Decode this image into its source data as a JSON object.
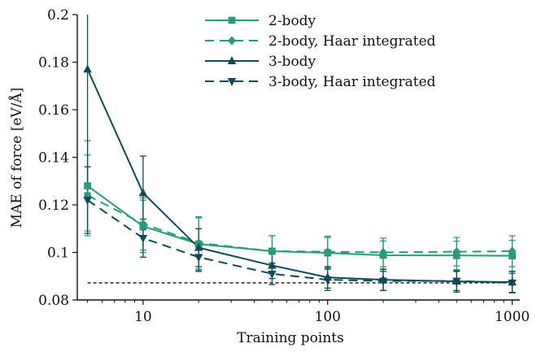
{
  "chart_data": {
    "type": "line",
    "title": "",
    "xlabel": "Training points",
    "ylabel": "MAE of force [eV/Å]",
    "x_scale": "log",
    "xlim": [
      4.4,
      1100
    ],
    "ylim": [
      0.08,
      0.2
    ],
    "x_ticks": [
      10,
      100,
      1000
    ],
    "x_tick_labels": [
      "10",
      "100",
      "1000"
    ],
    "y_ticks": [
      0.08,
      0.1,
      0.12,
      0.14,
      0.16,
      0.18,
      0.2
    ],
    "y_tick_labels": [
      "0.08",
      "0.1",
      "0.12",
      "0.14",
      "0.16",
      "0.18",
      "0.2"
    ],
    "legend_position": "top-right",
    "reference_line": {
      "y": 0.0872,
      "style": "dotted",
      "color": "#111111"
    },
    "series": [
      {
        "name": "2-body",
        "color": "#2a9a7a",
        "dash": "solid",
        "marker": "square",
        "x": [
          5,
          10,
          20,
          50,
          100,
          200,
          500,
          1000
        ],
        "y": [
          0.128,
          0.111,
          0.1035,
          0.1005,
          0.0998,
          0.0988,
          0.0987,
          0.0986
        ],
        "err": [
          0.019,
          0.011,
          0.011,
          0.0065,
          0.0065,
          0.006,
          0.006,
          0.0065
        ]
      },
      {
        "name": "2-body, Haar integrated",
        "color": "#2a9a7a",
        "dash": "dashed",
        "marker": "diamond",
        "x": [
          5,
          10,
          20,
          50,
          100,
          200,
          500,
          1000
        ],
        "y": [
          0.124,
          0.112,
          0.104,
          0.1005,
          0.1003,
          0.1,
          0.1003,
          0.1005
        ],
        "err": [
          0.017,
          0.011,
          0.011,
          0.0065,
          0.0065,
          0.006,
          0.006,
          0.0065
        ]
      },
      {
        "name": "3-body",
        "color": "#0e4a5a",
        "dash": "solid",
        "marker": "triangle-up",
        "x": [
          5,
          10,
          20,
          50,
          100,
          200,
          500,
          1000
        ],
        "y": [
          0.177,
          0.125,
          0.102,
          0.0945,
          0.0895,
          0.0885,
          0.0878,
          0.0875
        ],
        "err": [
          0.052,
          0.0155,
          0.008,
          0.0055,
          0.0045,
          0.0045,
          0.0045,
          0.0045
        ]
      },
      {
        "name": "3-body, Haar integrated",
        "color": "#0e4a5a",
        "dash": "dashed",
        "marker": "triangle-down",
        "x": [
          5,
          10,
          20,
          50,
          100,
          200,
          500,
          1000
        ],
        "y": [
          0.122,
          0.106,
          0.098,
          0.091,
          0.0885,
          0.088,
          0.088,
          0.0872
        ],
        "err": [
          0.014,
          0.008,
          0.006,
          0.0045,
          0.0045,
          0.004,
          0.004,
          0.004
        ]
      }
    ]
  }
}
